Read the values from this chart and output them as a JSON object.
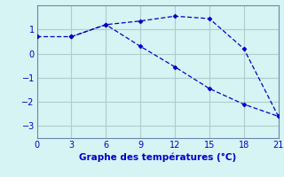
{
  "line1_x": [
    0,
    3,
    6,
    9,
    12,
    15,
    18,
    21
  ],
  "line1_y": [
    0.7,
    0.7,
    1.2,
    1.35,
    1.55,
    1.45,
    0.2,
    -2.6
  ],
  "line2_x": [
    3,
    6,
    9,
    12,
    15,
    18,
    21
  ],
  "line2_y": [
    0.7,
    1.2,
    0.3,
    -0.55,
    -1.45,
    -2.1,
    -2.6
  ],
  "line_color": "#0000cc",
  "bg_color": "#d6f4f4",
  "grid_color": "#b0cccc",
  "xlabel": "Graphe des températures (°C)",
  "xlim": [
    0,
    21
  ],
  "ylim": [
    -3.5,
    2.0
  ],
  "xticks": [
    0,
    3,
    6,
    9,
    12,
    15,
    18,
    21
  ],
  "yticks": [
    -3,
    -2,
    -1,
    0,
    1
  ],
  "xlabel_fontsize": 7.5,
  "tick_fontsize": 7
}
